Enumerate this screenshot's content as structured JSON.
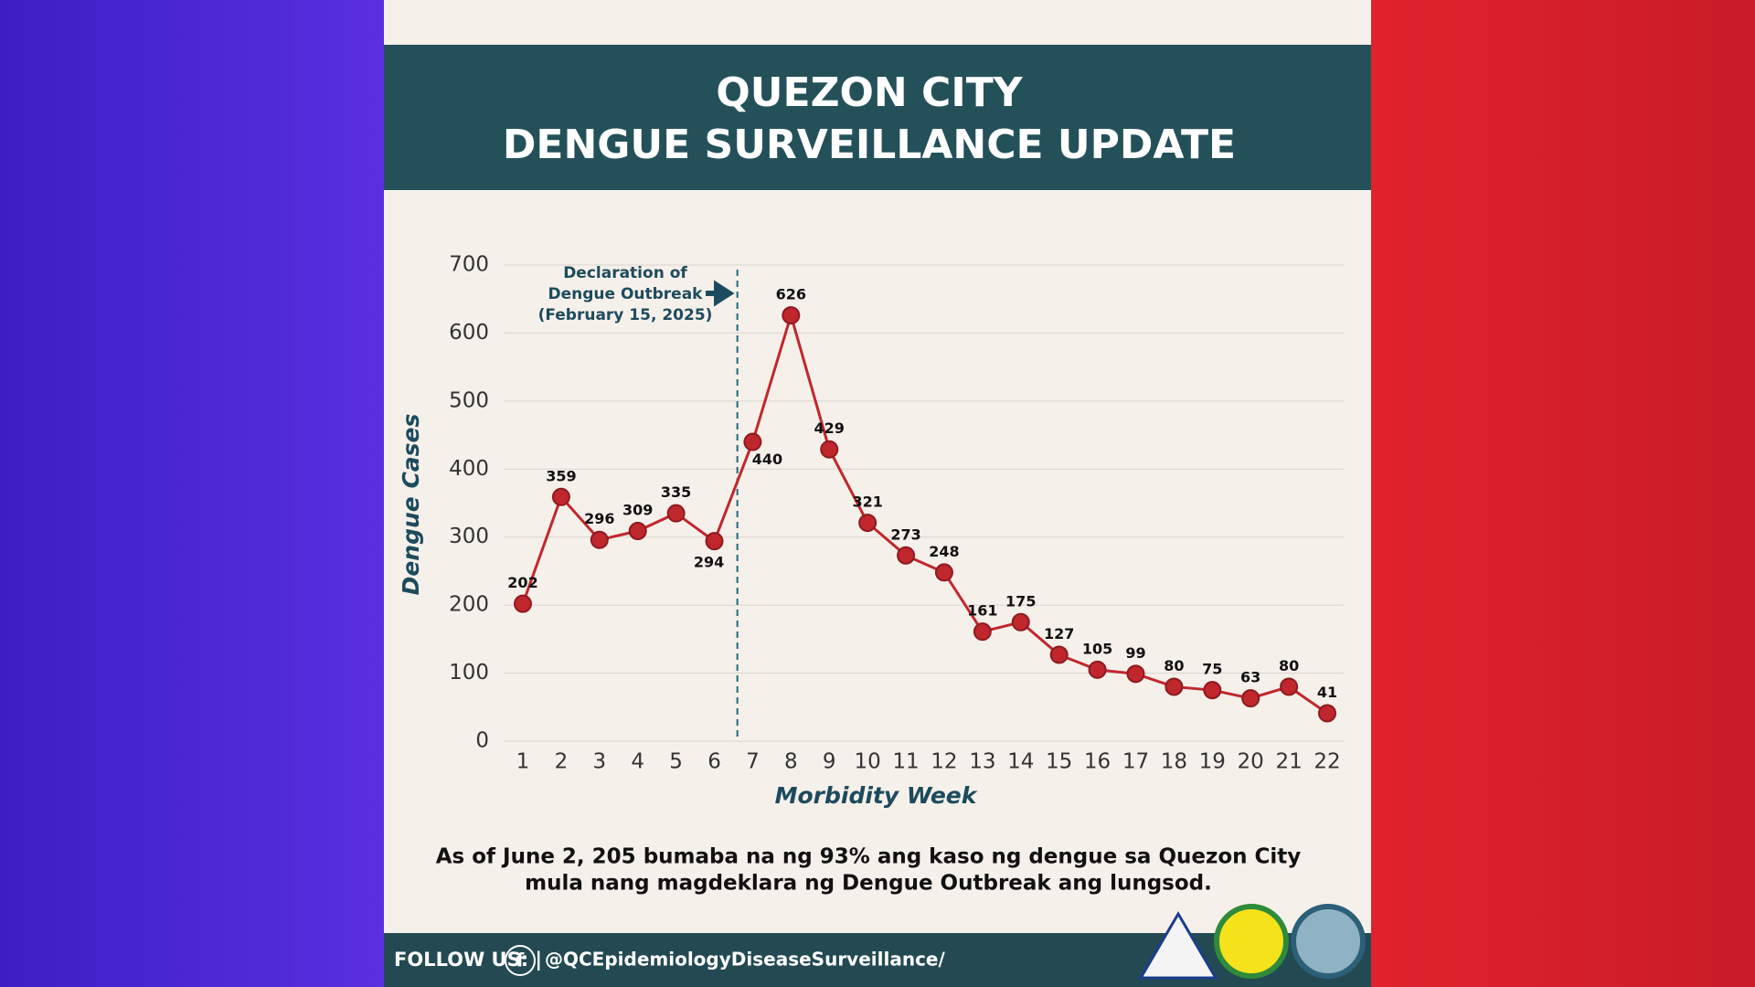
{
  "header": {
    "title": [
      "QUEZON CITY",
      "DENGUE SURVEILLANCE UPDATE"
    ]
  },
  "chart_data": {
    "type": "line",
    "annotation": [
      "Declaration of",
      "Dengue Outbreak",
      "(February 15, 2025)"
    ],
    "x_label": "Morbidity Week",
    "y_label": "Dengue Cases",
    "categories": [
      "1",
      "2",
      "3",
      "4",
      "5",
      "6",
      "7",
      "8",
      "9",
      "10",
      "11",
      "12",
      "13",
      "14",
      "15",
      "16",
      "17",
      "18",
      "19",
      "20",
      "21",
      "22"
    ],
    "series": [
      {
        "name": "Dengue Cases",
        "color": "#c0272d",
        "values": [
          202,
          359,
          296,
          309,
          335,
          294,
          440,
          626,
          429,
          321,
          273,
          248,
          161,
          175,
          127,
          105,
          99,
          80,
          75,
          63,
          80,
          41
        ]
      }
    ],
    "ylim": [
      0,
      700
    ],
    "yticks": [
      0,
      100,
      200,
      300,
      400,
      500,
      600,
      700
    ],
    "grid": true
  },
  "caption": [
    "As of June 2, 205 bumaba na ng 93% ang kaso ng dengue sa Quezon City",
    "mula nang magdeklara ng Dengue Outbreak ang lungsod."
  ],
  "footer": {
    "follow": "FOLLOW US: |",
    "handle": "@QCEpidemiologyDiseaseSurveillance/"
  }
}
